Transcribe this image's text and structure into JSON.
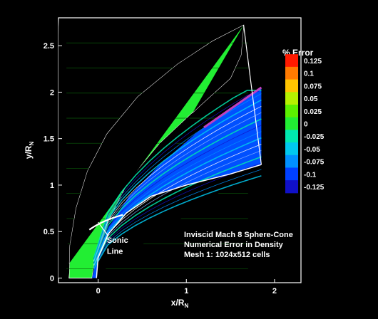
{
  "chart_data": {
    "type": "contour",
    "xlabel": "x/R",
    "xlabel_sub": "N",
    "ylabel": "y/R",
    "ylabel_sub": "N",
    "xlim": [
      -0.45,
      2.3
    ],
    "ylim": [
      -0.05,
      2.8
    ],
    "x_ticks": [
      {
        "value": 0,
        "label": "0"
      },
      {
        "value": 1,
        "label": "1"
      },
      {
        "value": 2,
        "label": "2"
      }
    ],
    "y_ticks": [
      {
        "value": 0,
        "label": "0"
      },
      {
        "value": 0.5,
        "label": "0.5"
      },
      {
        "value": 1,
        "label": "1"
      },
      {
        "value": 1.5,
        "label": "1.5"
      },
      {
        "value": 2,
        "label": "2"
      },
      {
        "value": 2.5,
        "label": "2.5"
      }
    ],
    "legend": {
      "title": "% Error",
      "position": "top-right",
      "levels": [
        {
          "value": 0.125,
          "label": "0.125",
          "color": "#ff1a00"
        },
        {
          "value": 0.1,
          "label": "0.1",
          "color": "#ff7a00"
        },
        {
          "value": 0.075,
          "label": "0.075",
          "color": "#ffc400"
        },
        {
          "value": 0.05,
          "label": "0.05",
          "color": "#b6f000"
        },
        {
          "value": 0.025,
          "label": "0.025",
          "color": "#5cf000"
        },
        {
          "value": 0,
          "label": "0",
          "color": "#22ee33"
        },
        {
          "value": -0.025,
          "label": "-0.025",
          "color": "#00e8b0"
        },
        {
          "value": -0.05,
          "label": "-0.05",
          "color": "#00c8ee"
        },
        {
          "value": -0.075,
          "label": "-0.075",
          "color": "#0090ff"
        },
        {
          "value": -0.1,
          "label": "-0.1",
          "color": "#0040ff"
        },
        {
          "value": -0.125,
          "label": "-0.125",
          "color": "#1010c8"
        }
      ]
    },
    "regions": [
      {
        "name": "freestream",
        "color": "#22ee33"
      },
      {
        "name": "shock-layer",
        "color": "#0050ff"
      }
    ],
    "annotations": [
      {
        "text": "Sonic",
        "x": 0.05,
        "y": 0.38
      },
      {
        "text": "Line",
        "x": 0.05,
        "y": 0.26
      }
    ],
    "info_text": [
      "Inviscid Mach 8 Sphere-Cone",
      "Numerical Error in Density",
      "Mesh 1: 1024x512 cells"
    ]
  }
}
